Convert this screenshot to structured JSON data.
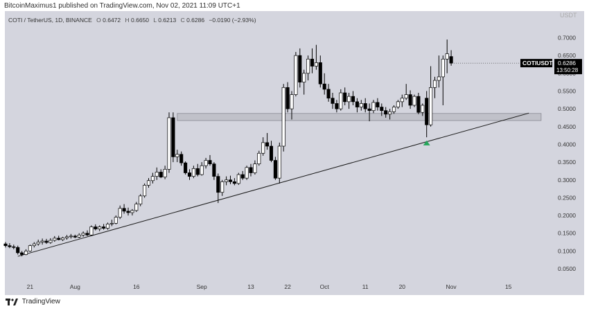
{
  "header": {
    "attribution": "BitcoinMaximus1 published on TradingView.com, Nov 02, 2021 11:09 UTC+1"
  },
  "legend": {
    "title": "COTI / TetherUS, 1D, BINANCE",
    "open_label": "O",
    "open": "0.6472",
    "high_label": "H",
    "high": "0.6650",
    "low_label": "L",
    "low": "0.6213",
    "close_label": "C",
    "close": "0.6286",
    "change": "−0.0190 (−2.93%)"
  },
  "price_tag": {
    "symbol": "COTIUSDT",
    "price": "0.6286",
    "countdown": "13:50:28"
  },
  "axis_currency": "USDT",
  "footer": {
    "brand": "TradingView"
  },
  "colors": {
    "background": "#d4d5de",
    "up": "#ffffff",
    "down": "#000000",
    "arrow": "#26a65b",
    "zone": "#bcbdc6"
  },
  "chart_data": {
    "type": "candlestick",
    "y_ticks": [
      "0.7000",
      "0.6500",
      "0.6000",
      "0.5500",
      "0.5000",
      "0.4500",
      "0.4000",
      "0.3500",
      "0.3000",
      "0.2500",
      "0.2000",
      "0.1500",
      "0.1000",
      "0.0500"
    ],
    "x_ticks": [
      {
        "label": "21",
        "day": 6
      },
      {
        "label": "Aug",
        "day": 17
      },
      {
        "label": "16",
        "day": 32
      },
      {
        "label": "Sep",
        "day": 48
      },
      {
        "label": "13",
        "day": 60
      },
      {
        "label": "22",
        "day": 69
      },
      {
        "label": "Oct",
        "day": 78
      },
      {
        "label": "11",
        "day": 88
      },
      {
        "label": "20",
        "day": 97
      },
      {
        "label": "Nov",
        "day": 109
      },
      {
        "label": "15",
        "day": 123
      }
    ],
    "ylim": [
      0.015,
      0.775
    ],
    "support_zone": [
      0.467,
      0.487
    ],
    "trendline": [
      {
        "day": 3,
        "price": 0.085
      },
      {
        "day": 128,
        "price": 0.488
      }
    ],
    "arrow": {
      "day": 103,
      "price": 0.405
    },
    "candles": [
      [
        0.12,
        0.125,
        0.11,
        0.115
      ],
      [
        0.115,
        0.122,
        0.108,
        0.112
      ],
      [
        0.112,
        0.118,
        0.105,
        0.11
      ],
      [
        0.11,
        0.115,
        0.09,
        0.095
      ],
      [
        0.095,
        0.1,
        0.085,
        0.09
      ],
      [
        0.09,
        0.105,
        0.088,
        0.1
      ],
      [
        0.1,
        0.118,
        0.098,
        0.115
      ],
      [
        0.115,
        0.125,
        0.11,
        0.12
      ],
      [
        0.12,
        0.132,
        0.115,
        0.125
      ],
      [
        0.125,
        0.135,
        0.118,
        0.128
      ],
      [
        0.128,
        0.134,
        0.12,
        0.124
      ],
      [
        0.124,
        0.136,
        0.12,
        0.13
      ],
      [
        0.13,
        0.142,
        0.126,
        0.136
      ],
      [
        0.136,
        0.143,
        0.13,
        0.132
      ],
      [
        0.132,
        0.14,
        0.128,
        0.137
      ],
      [
        0.137,
        0.145,
        0.132,
        0.14
      ],
      [
        0.14,
        0.148,
        0.135,
        0.142
      ],
      [
        0.142,
        0.146,
        0.136,
        0.139
      ],
      [
        0.139,
        0.15,
        0.136,
        0.145
      ],
      [
        0.145,
        0.155,
        0.14,
        0.15
      ],
      [
        0.15,
        0.158,
        0.142,
        0.145
      ],
      [
        0.145,
        0.172,
        0.143,
        0.168
      ],
      [
        0.168,
        0.175,
        0.158,
        0.162
      ],
      [
        0.162,
        0.172,
        0.156,
        0.168
      ],
      [
        0.168,
        0.176,
        0.16,
        0.164
      ],
      [
        0.164,
        0.18,
        0.16,
        0.176
      ],
      [
        0.176,
        0.188,
        0.17,
        0.178
      ],
      [
        0.178,
        0.2,
        0.175,
        0.195
      ],
      [
        0.195,
        0.228,
        0.19,
        0.22
      ],
      [
        0.22,
        0.232,
        0.205,
        0.212
      ],
      [
        0.212,
        0.222,
        0.2,
        0.208
      ],
      [
        0.208,
        0.218,
        0.2,
        0.214
      ],
      [
        0.214,
        0.238,
        0.21,
        0.232
      ],
      [
        0.232,
        0.26,
        0.226,
        0.255
      ],
      [
        0.255,
        0.29,
        0.25,
        0.285
      ],
      [
        0.285,
        0.305,
        0.278,
        0.298
      ],
      [
        0.298,
        0.32,
        0.29,
        0.31
      ],
      [
        0.31,
        0.335,
        0.3,
        0.322
      ],
      [
        0.322,
        0.33,
        0.305,
        0.308
      ],
      [
        0.308,
        0.34,
        0.302,
        0.33
      ],
      [
        0.33,
        0.49,
        0.32,
        0.475
      ],
      [
        0.475,
        0.49,
        0.35,
        0.365
      ],
      [
        0.365,
        0.385,
        0.35,
        0.372
      ],
      [
        0.372,
        0.38,
        0.34,
        0.348
      ],
      [
        0.348,
        0.352,
        0.315,
        0.32
      ],
      [
        0.32,
        0.33,
        0.3,
        0.31
      ],
      [
        0.31,
        0.34,
        0.305,
        0.332
      ],
      [
        0.332,
        0.345,
        0.31,
        0.315
      ],
      [
        0.315,
        0.35,
        0.312,
        0.34
      ],
      [
        0.34,
        0.362,
        0.332,
        0.355
      ],
      [
        0.355,
        0.37,
        0.34,
        0.345
      ],
      [
        0.345,
        0.35,
        0.3,
        0.31
      ],
      [
        0.31,
        0.318,
        0.235,
        0.265
      ],
      [
        0.265,
        0.3,
        0.255,
        0.295
      ],
      [
        0.295,
        0.31,
        0.285,
        0.3
      ],
      [
        0.3,
        0.312,
        0.288,
        0.295
      ],
      [
        0.295,
        0.305,
        0.285,
        0.29
      ],
      [
        0.29,
        0.32,
        0.286,
        0.315
      ],
      [
        0.315,
        0.325,
        0.3,
        0.305
      ],
      [
        0.305,
        0.34,
        0.3,
        0.335
      ],
      [
        0.335,
        0.345,
        0.31,
        0.32
      ],
      [
        0.32,
        0.355,
        0.315,
        0.345
      ],
      [
        0.345,
        0.382,
        0.34,
        0.375
      ],
      [
        0.375,
        0.42,
        0.368,
        0.405
      ],
      [
        0.405,
        0.432,
        0.385,
        0.395
      ],
      [
        0.395,
        0.41,
        0.35,
        0.355
      ],
      [
        0.355,
        0.365,
        0.3,
        0.305
      ],
      [
        0.305,
        0.405,
        0.29,
        0.395
      ],
      [
        0.395,
        0.57,
        0.38,
        0.56
      ],
      [
        0.56,
        0.575,
        0.49,
        0.5
      ],
      [
        0.5,
        0.55,
        0.47,
        0.54
      ],
      [
        0.54,
        0.66,
        0.535,
        0.65
      ],
      [
        0.65,
        0.67,
        0.56,
        0.575
      ],
      [
        0.575,
        0.61,
        0.54,
        0.6
      ],
      [
        0.6,
        0.65,
        0.58,
        0.64
      ],
      [
        0.64,
        0.67,
        0.6,
        0.62
      ],
      [
        0.62,
        0.68,
        0.61,
        0.63
      ],
      [
        0.63,
        0.65,
        0.56,
        0.57
      ],
      [
        0.57,
        0.6,
        0.54,
        0.555
      ],
      [
        0.555,
        0.57,
        0.52,
        0.53
      ],
      [
        0.53,
        0.545,
        0.5,
        0.515
      ],
      [
        0.515,
        0.525,
        0.49,
        0.5
      ],
      [
        0.5,
        0.555,
        0.495,
        0.545
      ],
      [
        0.545,
        0.56,
        0.51,
        0.52
      ],
      [
        0.52,
        0.545,
        0.5,
        0.535
      ],
      [
        0.535,
        0.55,
        0.51,
        0.52
      ],
      [
        0.52,
        0.53,
        0.49,
        0.505
      ],
      [
        0.505,
        0.525,
        0.495,
        0.515
      ],
      [
        0.515,
        0.53,
        0.49,
        0.5
      ],
      [
        0.5,
        0.515,
        0.465,
        0.495
      ],
      [
        0.495,
        0.525,
        0.488,
        0.518
      ],
      [
        0.518,
        0.53,
        0.495,
        0.505
      ],
      [
        0.505,
        0.515,
        0.48,
        0.495
      ],
      [
        0.495,
        0.505,
        0.475,
        0.485
      ],
      [
        0.485,
        0.5,
        0.47,
        0.492
      ],
      [
        0.492,
        0.51,
        0.486,
        0.505
      ],
      [
        0.505,
        0.525,
        0.5,
        0.52
      ],
      [
        0.52,
        0.54,
        0.505,
        0.53
      ],
      [
        0.53,
        0.57,
        0.525,
        0.54
      ],
      [
        0.54,
        0.552,
        0.5,
        0.51
      ],
      [
        0.51,
        0.54,
        0.505,
        0.535
      ],
      [
        0.535,
        0.545,
        0.485,
        0.49
      ],
      [
        0.49,
        0.515,
        0.48,
        0.51
      ],
      [
        0.53,
        0.55,
        0.42,
        0.455
      ],
      [
        0.455,
        0.62,
        0.45,
        0.56
      ],
      [
        0.56,
        0.59,
        0.53,
        0.58
      ],
      [
        0.58,
        0.65,
        0.56,
        0.59
      ],
      [
        0.59,
        0.65,
        0.51,
        0.64
      ],
      [
        0.64,
        0.695,
        0.6,
        0.655
      ],
      [
        0.6472,
        0.665,
        0.6213,
        0.6286
      ]
    ]
  }
}
